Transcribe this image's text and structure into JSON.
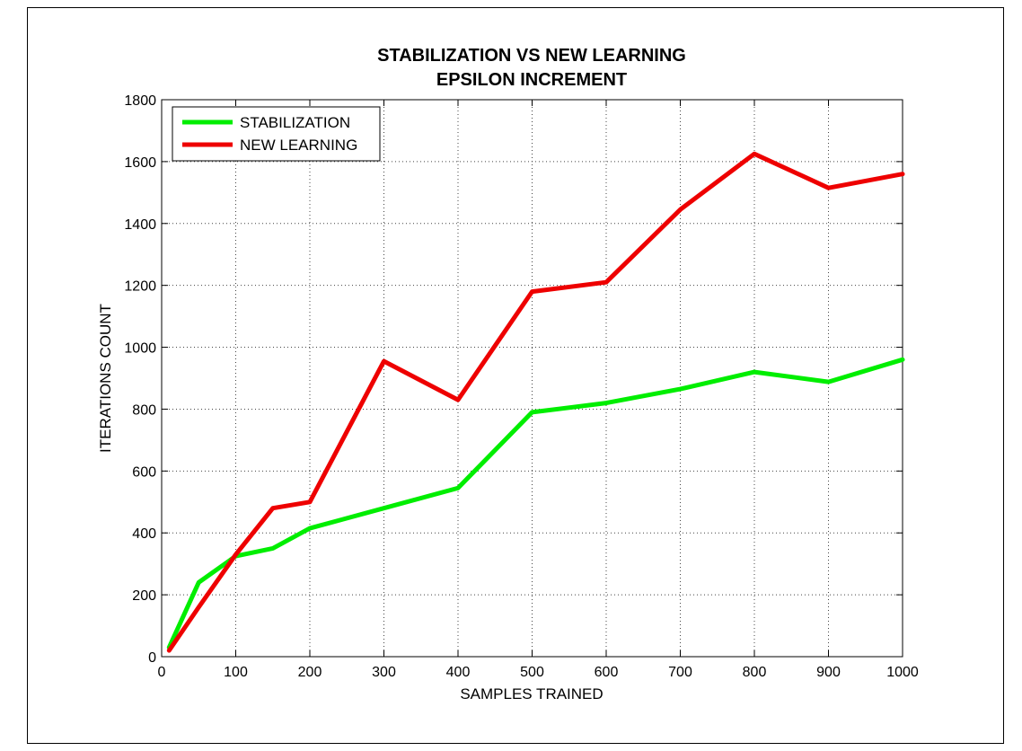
{
  "chart_data": {
    "type": "line",
    "title": [
      "STABILIZATION  VS  NEW LEARNING",
      "EPSILON INCREMENT"
    ],
    "xlabel": "SAMPLES TRAINED",
    "ylabel": "ITERATIONS COUNT",
    "xlim": [
      0,
      1000
    ],
    "ylim": [
      0,
      1800
    ],
    "xticks": [
      0,
      100,
      200,
      300,
      400,
      500,
      600,
      700,
      800,
      900,
      1000
    ],
    "yticks": [
      0,
      200,
      400,
      600,
      800,
      1000,
      1200,
      1400,
      1600,
      1800
    ],
    "grid": true,
    "legend_position": "top-left",
    "x": [
      10,
      50,
      100,
      150,
      200,
      300,
      400,
      500,
      600,
      700,
      800,
      900,
      1000
    ],
    "series": [
      {
        "name": "STABILIZATION",
        "color": "#00ee00",
        "values": [
          30,
          240,
          325,
          350,
          415,
          480,
          545,
          790,
          820,
          865,
          920,
          888,
          960
        ]
      },
      {
        "name": "NEW LEARNING",
        "color": "#ee0000",
        "values": [
          20,
          160,
          330,
          480,
          500,
          955,
          830,
          1180,
          1210,
          1445,
          1625,
          1515,
          1560
        ]
      }
    ]
  }
}
